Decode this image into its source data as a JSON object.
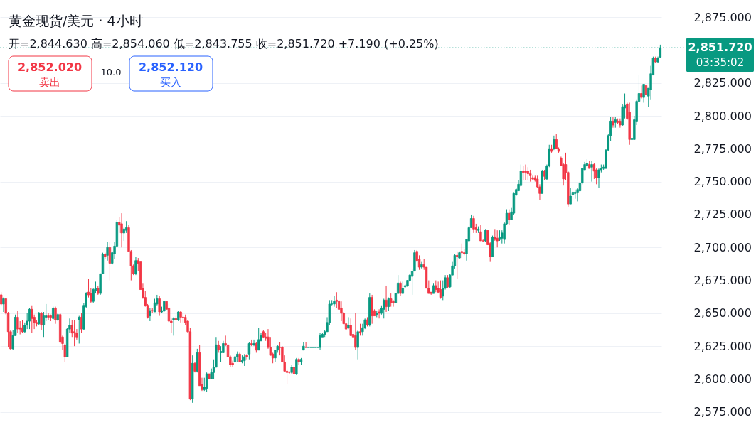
{
  "chart_data": {
    "type": "candlestick",
    "title": "黄金现货/美元 · 4小时",
    "subtitle": "开=2,844.630 高=2,854.060 低=2,843.755 收=2,851.720 +7.190 (+0.25%)",
    "categories": [
      null,
      null,
      null,
      null,
      null,
      null,
      null,
      null,
      null,
      null,
      null,
      null,
      null,
      null,
      null,
      null,
      null,
      null,
      null,
      null,
      null,
      null,
      null,
      null,
      null,
      null,
      null,
      null,
      null,
      null,
      null,
      null,
      null,
      null,
      null,
      null,
      null,
      null,
      null,
      null,
      null,
      null,
      null,
      null,
      null,
      null,
      null,
      null,
      null,
      null,
      null,
      null,
      null,
      null,
      null,
      null,
      null,
      null,
      null,
      null,
      null,
      null,
      null,
      null,
      null,
      null,
      null,
      null,
      null,
      null,
      null,
      null,
      null,
      null,
      null,
      null,
      null,
      null,
      null,
      null,
      null,
      null,
      null,
      null,
      null,
      null,
      null,
      null,
      null,
      null,
      null,
      null,
      null,
      null,
      null,
      null,
      null,
      null,
      null,
      null,
      null,
      null,
      null,
      null,
      null,
      null,
      null,
      null,
      null,
      null,
      null,
      null,
      null,
      null,
      null,
      null,
      null,
      null,
      null,
      null,
      null,
      null,
      null,
      null,
      null,
      null,
      null,
      null,
      null,
      null,
      null,
      null,
      null,
      null,
      null,
      null,
      null,
      null,
      null,
      null,
      null,
      null,
      null,
      null,
      null,
      null,
      null,
      null,
      null,
      null,
      null,
      null,
      null,
      null,
      null,
      null,
      null,
      null,
      null,
      null,
      null,
      null,
      null,
      null,
      null,
      null,
      null,
      null,
      null,
      null,
      null,
      null,
      null,
      null,
      null,
      null,
      null,
      null,
      null,
      null,
      null,
      null,
      null,
      null,
      null,
      null,
      null,
      null,
      null,
      null,
      null,
      null,
      null,
      null,
      null,
      null,
      null,
      null,
      null,
      null,
      null,
      null,
      null,
      null,
      null,
      null,
      null,
      null,
      null,
      null,
      null,
      null,
      null,
      null,
      null,
      null,
      null,
      null,
      null,
      null,
      null,
      null,
      null,
      null,
      null,
      null,
      null,
      null,
      null,
      null,
      null,
      null,
      null,
      null,
      null,
      null,
      null,
      null,
      null,
      null,
      null,
      null,
      null,
      null,
      null,
      null,
      null,
      null,
      null,
      null,
      null,
      null,
      null,
      null,
      null,
      null,
      null,
      null,
      null,
      null,
      null,
      null,
      null,
      null,
      null,
      null,
      null,
      null,
      null,
      null,
      null,
      null,
      null,
      null,
      null,
      null,
      null,
      null,
      null,
      null
    ],
    "ohlc": [
      [
        2664,
        2666,
        2656,
        2657
      ],
      [
        2657,
        2662,
        2651,
        2661
      ],
      [
        2661,
        2661,
        2649,
        2650
      ],
      [
        2650,
        2651,
        2624,
        2636
      ],
      [
        2636,
        2637,
        2622,
        2623
      ],
      [
        2623,
        2637,
        2622,
        2633
      ],
      [
        2633,
        2649,
        2633,
        2647
      ],
      [
        2647,
        2652,
        2635,
        2638
      ],
      [
        2639,
        2644,
        2634,
        2638
      ],
      [
        2639,
        2645,
        2635,
        2636
      ],
      [
        2636,
        2643,
        2635,
        2641
      ],
      [
        2641,
        2650,
        2638,
        2644
      ],
      [
        2644,
        2654,
        2638,
        2653
      ],
      [
        2653,
        2656,
        2635,
        2646
      ],
      [
        2647,
        2649,
        2638,
        2643
      ],
      [
        2643,
        2645,
        2640,
        2642
      ],
      [
        2642,
        2651,
        2641,
        2650
      ],
      [
        2650,
        2651,
        2637,
        2641
      ],
      [
        2641,
        2651,
        2632,
        2648
      ],
      [
        2647,
        2657,
        2644,
        2648
      ],
      [
        2648,
        2650,
        2645,
        2647
      ],
      [
        2648,
        2649,
        2644,
        2647
      ],
      [
        2646,
        2655,
        2645,
        2654
      ],
      [
        2654,
        2655,
        2642,
        2645
      ],
      [
        2645,
        2650,
        2644,
        2649
      ],
      [
        2649,
        2650,
        2627,
        2628
      ],
      [
        2632,
        2633,
        2622,
        2627
      ],
      [
        2626,
        2627,
        2613,
        2617
      ],
      [
        2617,
        2639,
        2617,
        2638
      ],
      [
        2638,
        2646,
        2635,
        2641
      ],
      [
        2641,
        2645,
        2632,
        2635
      ],
      [
        2636,
        2645,
        2625,
        2635
      ],
      [
        2635,
        2638,
        2630,
        2632
      ],
      [
        2645,
        2648,
        2627,
        2647
      ],
      [
        2647,
        2650,
        2635,
        2638
      ],
      [
        2638,
        2658,
        2637,
        2656
      ],
      [
        2655,
        2666,
        2654,
        2665
      ],
      [
        2666,
        2676,
        2662,
        2664
      ],
      [
        2665,
        2669,
        2658,
        2659
      ],
      [
        2659,
        2669,
        2658,
        2668
      ],
      [
        2667,
        2674,
        2665,
        2669
      ],
      [
        2669,
        2671,
        2664,
        2665
      ],
      [
        2665,
        2680,
        2664,
        2680
      ],
      [
        2680,
        2696,
        2680,
        2695
      ],
      [
        2695,
        2696,
        2691,
        2693
      ],
      [
        2694,
        2704,
        2690,
        2700
      ],
      [
        2700,
        2704,
        2675,
        2688
      ],
      [
        2688,
        2697,
        2687,
        2696
      ],
      [
        2695,
        2704,
        2691,
        2701
      ],
      [
        2701,
        2721,
        2700,
        2719
      ],
      [
        2719,
        2723,
        2711,
        2717
      ],
      [
        2718,
        2726,
        2700,
        2711
      ],
      [
        2711,
        2715,
        2705,
        2714
      ],
      [
        2713,
        2720,
        2711,
        2715
      ],
      [
        2715,
        2717,
        2697,
        2697
      ],
      [
        2697,
        2698,
        2675,
        2686
      ],
      [
        2686,
        2687,
        2679,
        2680
      ],
      [
        2680,
        2693,
        2679,
        2690
      ],
      [
        2690,
        2692,
        2682,
        2688
      ],
      [
        2689,
        2689,
        2668,
        2668
      ],
      [
        2669,
        2673,
        2661,
        2662
      ],
      [
        2662,
        2667,
        2655,
        2656
      ],
      [
        2656,
        2657,
        2646,
        2647
      ],
      [
        2648,
        2654,
        2644,
        2652
      ],
      [
        2652,
        2654,
        2650,
        2652
      ],
      [
        2651,
        2661,
        2651,
        2658
      ],
      [
        2657,
        2664,
        2656,
        2661
      ],
      [
        2661,
        2663,
        2648,
        2651
      ],
      [
        2651,
        2655,
        2650,
        2652
      ],
      [
        2652,
        2659,
        2651,
        2659
      ],
      [
        2659,
        2659,
        2653,
        2653
      ],
      [
        2654,
        2657,
        2643,
        2644
      ],
      [
        2644,
        2646,
        2635,
        2643
      ],
      [
        2645,
        2647,
        2633,
        2646
      ],
      [
        2646,
        2648,
        2645,
        2645
      ],
      [
        2645,
        2652,
        2644,
        2651
      ],
      [
        2651,
        2652,
        2643,
        2647
      ],
      [
        2647,
        2650,
        2643,
        2647
      ],
      [
        2647,
        2649,
        2641,
        2643
      ],
      [
        2644,
        2645,
        2635,
        2636
      ],
      [
        2636,
        2639,
        2584,
        2585
      ],
      [
        2585,
        2618,
        2582,
        2612
      ],
      [
        2612,
        2613,
        2605,
        2606
      ],
      [
        2606,
        2623,
        2605,
        2620
      ],
      [
        2620,
        2626,
        2595,
        2595
      ],
      [
        2596,
        2601,
        2591,
        2592
      ],
      [
        2592,
        2601,
        2591,
        2594
      ],
      [
        2593,
        2605,
        2590,
        2604
      ],
      [
        2604,
        2604,
        2600,
        2600
      ],
      [
        2600,
        2608,
        2600,
        2605
      ],
      [
        2605,
        2615,
        2600,
        2609
      ],
      [
        2609,
        2632,
        2609,
        2626
      ],
      [
        2626,
        2629,
        2620,
        2622
      ],
      [
        2620,
        2625,
        2613,
        2621
      ],
      [
        2620,
        2629,
        2620,
        2627
      ],
      [
        2627,
        2633,
        2625,
        2626
      ],
      [
        2626,
        2627,
        2614,
        2617
      ],
      [
        2617,
        2618,
        2609,
        2611
      ],
      [
        2612,
        2614,
        2609,
        2611
      ],
      [
        2613,
        2618,
        2612,
        2617
      ],
      [
        2617,
        2621,
        2613,
        2619
      ],
      [
        2619,
        2620,
        2613,
        2613
      ],
      [
        2613,
        2618,
        2612,
        2614
      ],
      [
        2614,
        2619,
        2610,
        2617
      ],
      [
        2618,
        2619,
        2615,
        2617
      ],
      [
        2619,
        2628,
        2615,
        2627
      ],
      [
        2627,
        2630,
        2625,
        2626
      ],
      [
        2626,
        2630,
        2625,
        2627
      ],
      [
        2627,
        2628,
        2620,
        2622
      ],
      [
        2622,
        2639,
        2622,
        2630
      ],
      [
        2629,
        2635,
        2629,
        2633
      ],
      [
        2636,
        2637,
        2631,
        2632
      ],
      [
        2632,
        2635,
        2629,
        2631
      ],
      [
        2632,
        2638,
        2623,
        2624
      ],
      [
        2624,
        2632,
        2618,
        2618
      ],
      [
        2619,
        2620,
        2612,
        2616
      ],
      [
        2616,
        2622,
        2613,
        2622
      ],
      [
        2622,
        2626,
        2620,
        2625
      ],
      [
        2624,
        2628,
        2618,
        2624
      ],
      [
        2624,
        2625,
        2613,
        2613
      ],
      [
        2613,
        2618,
        2606,
        2606
      ],
      [
        2606,
        2608,
        2596,
        2605
      ],
      [
        2605,
        2606,
        2604,
        2605
      ],
      [
        2605,
        2611,
        2604,
        2609
      ],
      [
        2609,
        2610,
        2603,
        2604
      ],
      [
        2604,
        2616,
        2603,
        2615
      ],
      [
        2615,
        2616,
        2611,
        2613
      ],
      [
        2613,
        2616,
        2611,
        2615
      ],
      [
        2622,
        2628,
        2622,
        2625
      ],
      [
        2624,
        2628,
        2624,
        2624
      ],
      [
        2624,
        2624,
        2624,
        2624
      ],
      [
        2624,
        2624,
        2624,
        2624
      ],
      [
        2624,
        2624,
        2624,
        2624
      ],
      [
        2624,
        2624,
        2624,
        2624
      ],
      [
        2624,
        2624,
        2624,
        2624
      ],
      [
        2624,
        2635,
        2622,
        2633
      ],
      [
        2632,
        2635,
        2632,
        2634
      ],
      [
        2634,
        2637,
        2632,
        2636
      ],
      [
        2636,
        2647,
        2636,
        2643
      ],
      [
        2643,
        2660,
        2641,
        2657
      ],
      [
        2657,
        2660,
        2656,
        2657
      ],
      [
        2657,
        2663,
        2655,
        2659
      ],
      [
        2660,
        2666,
        2654,
        2659
      ],
      [
        2659,
        2660,
        2653,
        2653
      ],
      [
        2654,
        2659,
        2644,
        2650
      ],
      [
        2650,
        2651,
        2642,
        2642
      ],
      [
        2642,
        2643,
        2638,
        2638
      ],
      [
        2639,
        2647,
        2638,
        2641
      ],
      [
        2641,
        2646,
        2633,
        2633
      ],
      [
        2634,
        2637,
        2632,
        2632
      ],
      [
        2633,
        2650,
        2622,
        2624
      ],
      [
        2624,
        2637,
        2615,
        2636
      ],
      [
        2636,
        2642,
        2633,
        2635
      ],
      [
        2636,
        2642,
        2633,
        2639
      ],
      [
        2639,
        2646,
        2638,
        2645
      ],
      [
        2645,
        2647,
        2640,
        2641
      ],
      [
        2641,
        2665,
        2640,
        2662
      ],
      [
        2662,
        2664,
        2642,
        2648
      ],
      [
        2652,
        2653,
        2648,
        2648
      ],
      [
        2649,
        2652,
        2647,
        2650
      ],
      [
        2651,
        2653,
        2646,
        2650
      ],
      [
        2650,
        2656,
        2649,
        2654
      ],
      [
        2653,
        2661,
        2646,
        2660
      ],
      [
        2660,
        2671,
        2651,
        2655
      ],
      [
        2655,
        2662,
        2652,
        2661
      ],
      [
        2661,
        2665,
        2655,
        2658
      ],
      [
        2659,
        2660,
        2655,
        2658
      ],
      [
        2658,
        2665,
        2658,
        2665
      ],
      [
        2665,
        2679,
        2665,
        2673
      ],
      [
        2673,
        2674,
        2663,
        2665
      ],
      [
        2665,
        2674,
        2665,
        2669
      ],
      [
        2670,
        2672,
        2669,
        2671
      ],
      [
        2671,
        2675,
        2670,
        2675
      ],
      [
        2675,
        2680,
        2674,
        2679
      ],
      [
        2678,
        2684,
        2664,
        2682
      ],
      [
        2682,
        2698,
        2682,
        2696
      ],
      [
        2697,
        2698,
        2689,
        2690
      ],
      [
        2691,
        2694,
        2683,
        2685
      ],
      [
        2685,
        2689,
        2684,
        2687
      ],
      [
        2687,
        2691,
        2683,
        2685
      ],
      [
        2685,
        2685,
        2669,
        2669
      ],
      [
        2669,
        2675,
        2665,
        2665
      ],
      [
        2666,
        2666,
        2664,
        2665
      ],
      [
        2665,
        2673,
        2665,
        2671
      ],
      [
        2671,
        2675,
        2666,
        2668
      ],
      [
        2669,
        2674,
        2665,
        2666
      ],
      [
        2668,
        2675,
        2661,
        2662
      ],
      [
        2663,
        2675,
        2660,
        2669
      ],
      [
        2669,
        2679,
        2668,
        2677
      ],
      [
        2677,
        2679,
        2669,
        2670
      ],
      [
        2670,
        2680,
        2669,
        2679
      ],
      [
        2679,
        2689,
        2679,
        2686
      ],
      [
        2686,
        2695,
        2684,
        2694
      ],
      [
        2694,
        2697,
        2676,
        2693
      ],
      [
        2692,
        2697,
        2691,
        2696
      ],
      [
        2697,
        2703,
        2692,
        2696
      ],
      [
        2696,
        2699,
        2694,
        2695
      ],
      [
        2695,
        2706,
        2690,
        2706
      ],
      [
        2705,
        2716,
        2705,
        2715
      ],
      [
        2715,
        2725,
        2715,
        2722
      ],
      [
        2722,
        2724,
        2711,
        2714
      ],
      [
        2715,
        2718,
        2711,
        2714
      ],
      [
        2713,
        2716,
        2711,
        2714
      ],
      [
        2712,
        2717,
        2705,
        2705
      ],
      [
        2705,
        2706,
        2704,
        2705
      ],
      [
        2705,
        2714,
        2704,
        2713
      ],
      [
        2713,
        2713,
        2702,
        2702
      ],
      [
        2703,
        2704,
        2689,
        2693
      ],
      [
        2693,
        2709,
        2693,
        2708
      ],
      [
        2708,
        2714,
        2705,
        2706
      ],
      [
        2707,
        2713,
        2700,
        2705
      ],
      [
        2706,
        2713,
        2705,
        2708
      ],
      [
        2707,
        2713,
        2703,
        2711
      ],
      [
        2706,
        2719,
        2703,
        2718
      ],
      [
        2718,
        2729,
        2717,
        2726
      ],
      [
        2726,
        2729,
        2717,
        2721
      ],
      [
        2721,
        2730,
        2721,
        2727
      ],
      [
        2726,
        2742,
        2725,
        2741
      ],
      [
        2740,
        2745,
        2739,
        2744
      ],
      [
        2743,
        2751,
        2743,
        2748
      ],
      [
        2747,
        2763,
        2746,
        2758
      ],
      [
        2758,
        2762,
        2751,
        2757
      ],
      [
        2758,
        2763,
        2751,
        2757
      ],
      [
        2758,
        2761,
        2751,
        2756
      ],
      [
        2756,
        2759,
        2750,
        2755
      ],
      [
        2753,
        2755,
        2751,
        2752
      ],
      [
        2753,
        2755,
        2750,
        2751
      ],
      [
        2752,
        2755,
        2745,
        2746
      ],
      [
        2746,
        2748,
        2736,
        2741
      ],
      [
        2741,
        2759,
        2741,
        2758
      ],
      [
        2758,
        2759,
        2751,
        2754
      ],
      [
        2752,
        2763,
        2751,
        2762
      ],
      [
        2762,
        2778,
        2761,
        2775
      ],
      [
        2775,
        2778,
        2772,
        2773
      ],
      [
        2775,
        2785,
        2774,
        2782
      ],
      [
        2782,
        2786,
        2775,
        2775
      ],
      [
        2775,
        2776,
        2772,
        2773
      ],
      [
        2768,
        2769,
        2762,
        2762
      ],
      [
        2763,
        2764,
        2747,
        2752
      ],
      [
        2763,
        2772,
        2751,
        2757
      ],
      [
        2757,
        2758,
        2731,
        2733
      ],
      [
        2733,
        2745,
        2733,
        2739
      ],
      [
        2740,
        2745,
        2735,
        2742
      ],
      [
        2741,
        2744,
        2737,
        2742
      ],
      [
        2742,
        2745,
        2735,
        2744
      ],
      [
        2743,
        2750,
        2742,
        2749
      ],
      [
        2749,
        2760,
        2748,
        2760
      ],
      [
        2759,
        2765,
        2759,
        2763
      ],
      [
        2762,
        2767,
        2761,
        2764
      ],
      [
        2763,
        2766,
        2760,
        2760
      ],
      [
        2761,
        2766,
        2750,
        2763
      ],
      [
        2763,
        2764,
        2752,
        2758
      ],
      [
        2759,
        2760,
        2748,
        2753
      ],
      [
        2753,
        2760,
        2745,
        2759
      ],
      [
        2759,
        2763,
        2757,
        2760
      ],
      [
        2760,
        2763,
        2759,
        2761
      ],
      [
        2760,
        2775,
        2760,
        2774
      ],
      [
        2774,
        2786,
        2773,
        2785
      ],
      [
        2785,
        2799,
        2781,
        2796
      ],
      [
        2796,
        2799,
        2791,
        2793
      ],
      [
        2795,
        2799,
        2791,
        2797
      ],
      [
        2796,
        2798,
        2794,
        2795
      ],
      [
        2796,
        2798,
        2791,
        2793
      ],
      [
        2793,
        2809,
        2792,
        2807
      ],
      [
        2806,
        2817,
        2798,
        2808
      ],
      [
        2809,
        2810,
        2797,
        2798
      ],
      [
        2803,
        2810,
        2778,
        2782
      ],
      [
        2782,
        2785,
        2772,
        2783
      ],
      [
        2782,
        2800,
        2782,
        2797
      ],
      [
        2796,
        2812,
        2793,
        2811
      ],
      [
        2811,
        2831,
        2809,
        2817
      ],
      [
        2817,
        2823,
        2813,
        2814
      ],
      [
        2814,
        2824,
        2810,
        2824
      ],
      [
        2823,
        2824,
        2814,
        2816
      ],
      [
        2815,
        2821,
        2807,
        2821
      ],
      [
        2820,
        2838,
        2812,
        2832
      ],
      [
        2831,
        2845,
        2831,
        2844
      ],
      [
        2844,
        2845,
        2840,
        2841
      ],
      [
        2841,
        2845,
        2840,
        2844
      ],
      [
        2844.63,
        2854.06,
        2843.755,
        2851.72
      ]
    ],
    "colors": [
      "#f23645",
      "#089981",
      "#f23645",
      "#f23645",
      "#f23645",
      "#089981",
      "#089981",
      "#f23645",
      "#f23645",
      "#f23645",
      "#089981",
      "#089981",
      "#089981",
      "#f23645",
      "#f23645",
      "#f23645",
      "#089981",
      "#f23645",
      "#089981",
      "#089981",
      "#f23645",
      "#f23645",
      "#089981",
      "#f23645",
      "#089981",
      "#f23645",
      "#f23645",
      "#f23645",
      "#089981",
      "#089981",
      "#f23645",
      "#f23645",
      "#f23645",
      "#089981",
      "#f23645",
      "#089981",
      "#089981",
      "#f23645",
      "#f23645",
      "#089981",
      "#089981",
      "#f23645",
      "#089981",
      "#089981",
      "#f23645",
      "#089981",
      "#f23645",
      "#089981",
      "#089981",
      "#089981",
      "#f23645",
      "#f23645",
      "#089981",
      "#089981",
      "#f23645",
      "#f23645",
      "#f23645",
      "#089981",
      "#f23645",
      "#f23645",
      "#f23645",
      "#f23645",
      "#f23645",
      "#089981",
      "#f23645",
      "#089981",
      "#089981",
      "#f23645",
      "#089981",
      "#089981",
      "#f23645",
      "#f23645",
      "#f23645",
      "#089981",
      "#f23645",
      "#089981",
      "#f23645",
      "#f23645",
      "#f23645",
      "#f23645",
      "#f23645",
      "#089981",
      "#f23645",
      "#089981",
      "#f23645",
      "#f23645",
      "#089981",
      "#089981",
      "#f23645",
      "#089981",
      "#089981",
      "#089981",
      "#f23645",
      "#089981",
      "#089981",
      "#f23645",
      "#f23645",
      "#f23645",
      "#f23645",
      "#089981",
      "#089981",
      "#f23645",
      "#089981",
      "#089981",
      "#f23645",
      "#089981",
      "#f23645",
      "#089981",
      "#f23645",
      "#089981",
      "#089981",
      "#f23645",
      "#f23645",
      "#f23645",
      "#f23645",
      "#f23645",
      "#089981",
      "#089981",
      "#f23645",
      "#f23645",
      "#f23645",
      "#f23645",
      "#f23645",
      "#089981",
      "#f23645",
      "#089981",
      "#f23645",
      "#089981",
      "#089981",
      "#f23645",
      "#089981",
      "#089981",
      "#089981",
      "#089981",
      "#089981",
      "#089981",
      "#089981",
      "#089981",
      "#089981",
      "#089981",
      "#089981",
      "#089981",
      "#f23645",
      "#f23645",
      "#f23645",
      "#f23645",
      "#f23645",
      "#089981",
      "#f23645",
      "#f23645",
      "#f23645",
      "#089981",
      "#f23645",
      "#089981",
      "#089981",
      "#f23645",
      "#089981",
      "#f23645",
      "#f23645",
      "#089981",
      "#f23645",
      "#089981",
      "#089981",
      "#f23645",
      "#089981",
      "#f23645",
      "#f23645",
      "#089981",
      "#089981",
      "#f23645",
      "#089981",
      "#089981",
      "#089981",
      "#089981",
      "#089981",
      "#089981",
      "#f23645",
      "#f23645",
      "#089981",
      "#f23645",
      "#f23645",
      "#f23645",
      "#f23645",
      "#089981",
      "#f23645",
      "#f23645",
      "#f23645",
      "#089981",
      "#089981",
      "#f23645",
      "#089981",
      "#089981",
      "#089981",
      "#f23645",
      "#089981",
      "#f23645",
      "#f23645",
      "#089981",
      "#089981",
      "#089981",
      "#f23645",
      "#f23645",
      "#089981",
      "#f23645",
      "#f23645",
      "#089981",
      "#f23645",
      "#f23645",
      "#089981",
      "#f23645",
      "#f23645",
      "#089981",
      "#089981",
      "#089981",
      "#089981",
      "#f23645",
      "#089981",
      "#089981",
      "#089981",
      "#089981",
      "#089981",
      "#f23645",
      "#f23645",
      "#f23645",
      "#f23645",
      "#f23645",
      "#f23645",
      "#f23645",
      "#f23645",
      "#089981",
      "#f23645",
      "#089981",
      "#089981",
      "#f23645",
      "#089981",
      "#f23645",
      "#f23645",
      "#f23645",
      "#f23645",
      "#f23645",
      "#f23645",
      "#089981",
      "#089981",
      "#089981",
      "#089981",
      "#089981",
      "#089981",
      "#089981",
      "#089981",
      "#f23645",
      "#089981",
      "#f23645",
      "#f23645",
      "#089981",
      "#089981",
      "#089981",
      "#089981",
      "#089981",
      "#089981",
      "#f23645",
      "#089981",
      "#f23645",
      "#f23645",
      "#089981",
      "#089981",
      "#f23645",
      "#f23645",
      "#089981",
      "#089981",
      "#089981",
      "#089981",
      "#f23645",
      "#089981",
      "#f23645",
      "#089981",
      "#089981",
      "#089981",
      "#f23645",
      "#089981",
      "#089981"
    ],
    "ylim": [
      2556,
      2888
    ],
    "yticks": [
      {
        "value": 2575,
        "label": "2,575.000"
      },
      {
        "value": 2600,
        "label": "2,600.000"
      },
      {
        "value": 2625,
        "label": "2,625.000"
      },
      {
        "value": 2650,
        "label": "2,650.000"
      },
      {
        "value": 2675,
        "label": "2,675.000"
      },
      {
        "value": 2700,
        "label": "2,700.000"
      },
      {
        "value": 2725,
        "label": "2,725.000"
      },
      {
        "value": 2750,
        "label": "2,750.000"
      },
      {
        "value": 2775,
        "label": "2,775.000"
      },
      {
        "value": 2800,
        "label": "2,800.000"
      },
      {
        "value": 2825,
        "label": "2,825.000"
      },
      {
        "value": 2850,
        "label": null
      },
      {
        "value": 2875,
        "label": "2,875.000"
      }
    ],
    "grid": "y",
    "tick_labels": "y",
    "ref_lines": [
      {
        "axis": "y",
        "value": 2851.72,
        "label": "2,851.720",
        "color": "#089981",
        "line_style": "dotted"
      }
    ],
    "annotations": [
      "2,852.020",
      "卖出",
      "10.0",
      "2,852.120",
      "买入",
      "03:35:02"
    ]
  }
}
